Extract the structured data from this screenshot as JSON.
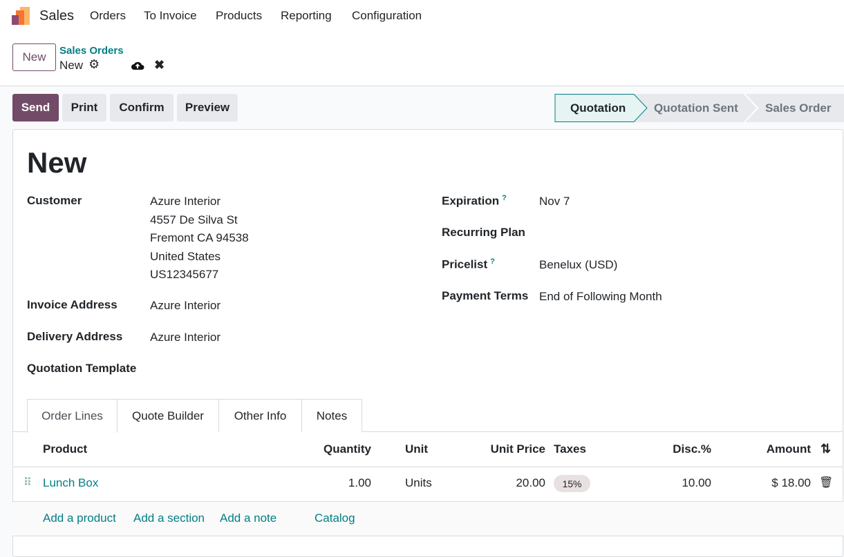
{
  "navbar": {
    "app": "Sales",
    "menu": [
      "Orders",
      "To Invoice",
      "Products",
      "Reporting",
      "Configuration"
    ]
  },
  "control_panel": {
    "new_button": "New",
    "breadcrumb_parent": "Sales Orders",
    "breadcrumb_current": "New"
  },
  "actions": {
    "send": "Send",
    "print": "Print",
    "confirm": "Confirm",
    "preview": "Preview"
  },
  "statusbar": {
    "stages": [
      "Quotation",
      "Quotation Sent",
      "Sales Order"
    ],
    "active": "Quotation"
  },
  "form": {
    "title": "New",
    "customer_label": "Customer",
    "customer_lines": [
      "Azure Interior",
      "4557 De Silva St",
      "Fremont CA 94538",
      "United States",
      "US12345677"
    ],
    "invoice_address_label": "Invoice Address",
    "invoice_address": "Azure Interior",
    "delivery_address_label": "Delivery Address",
    "delivery_address": "Azure Interior",
    "quotation_template_label": "Quotation Template",
    "expiration_label": "Expiration",
    "expiration": "Nov 7",
    "recurring_plan_label": "Recurring Plan",
    "pricelist_label": "Pricelist",
    "pricelist": "Benelux (USD)",
    "payment_terms_label": "Payment Terms",
    "payment_terms": "End of Following Month",
    "help_mark": "?"
  },
  "tabs": [
    "Order Lines",
    "Quote Builder",
    "Other Info",
    "Notes"
  ],
  "order_lines": {
    "columns": [
      "Product",
      "Quantity",
      "Unit",
      "Unit Price",
      "Taxes",
      "Disc.%",
      "Amount"
    ],
    "rows": [
      {
        "product": "Lunch Box",
        "quantity": "1.00",
        "unit": "Units",
        "unit_price": "20.00",
        "taxes": "15%",
        "discount": "10.00",
        "amount": "$ 18.00"
      }
    ],
    "add_links": [
      "Add a product",
      "Add a section",
      "Add a note",
      "Catalog"
    ]
  },
  "colors": {
    "primary": "#714b67",
    "link": "#017e84"
  }
}
